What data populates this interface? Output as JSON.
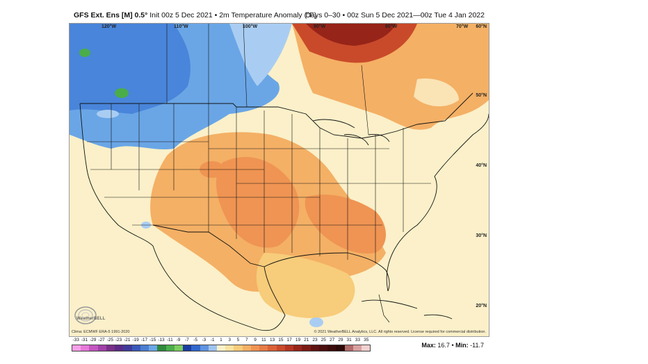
{
  "header": {
    "model": "GFS Ext. Ens [M] 0.5°",
    "init": "Init 00z 5 Dec 2021 • 2m Temperature Anomaly (°F)",
    "valid": "Days 0–30 • 00z Sun 5 Dec 2021—00z Tue 4 Jan 2022"
  },
  "map": {
    "lon_labels": [
      "120°W",
      "110°W",
      "100°W",
      "90°W",
      "80°W",
      "70°W"
    ],
    "lat_labels": [
      "60°N",
      "50°N",
      "40°N",
      "30°N",
      "20°N"
    ],
    "clim_note": "Clima: ECMWF ERA-5 1991-2020",
    "copyright": "© 2021 WeatherBELL Analytics, LLC. All rights reserved. License required for commercial distribution.",
    "logo_text": "WeatherBELL"
  },
  "legend": {
    "values": [
      "-33",
      "-31",
      "-29",
      "-27",
      "-25",
      "-23",
      "-21",
      "-19",
      "-17",
      "-15",
      "-13",
      "-11",
      "-9",
      "-7",
      "-5",
      "-3",
      "-1",
      "1",
      "3",
      "5",
      "7",
      "9",
      "11",
      "13",
      "15",
      "17",
      "19",
      "21",
      "23",
      "25",
      "27",
      "29",
      "31",
      "33",
      "35"
    ],
    "colors": [
      "#f5a0e8",
      "#e778d8",
      "#c455c0",
      "#a040a8",
      "#7a2e88",
      "#5b2a86",
      "#3f3a9a",
      "#3a58b8",
      "#4a7ed0",
      "#6aa6e6",
      "#2e8a3a",
      "#4aad4a",
      "#7ccc5e",
      "#1a3ca0",
      "#2f66cc",
      "#5f93e0",
      "#9ec3ef",
      "#fbf0c9",
      "#f9e3a0",
      "#f7cc7a",
      "#f4b065",
      "#ef9453",
      "#e67b45",
      "#da6137",
      "#c94a2a",
      "#b23521",
      "#962419",
      "#7b1a14",
      "#5e1310",
      "#4a0e0c",
      "#3a0a0a",
      "#2c0808",
      "#b06a6a",
      "#d9a0a0",
      "#f2d0d0"
    ]
  },
  "stats": {
    "max_label": "Max:",
    "max_value": "16.7",
    "min_label": "Min:",
    "min_value": "-11.7",
    "separator": "•"
  },
  "colors": {
    "cold_strong": "#3f79d6",
    "cold_mid": "#6aa6e6",
    "cold_light": "#a9cdf2",
    "near_zero": "#fbf0c9",
    "warm_light": "#f7cc7a",
    "warm_mid": "#f4b065",
    "warm_strong": "#ef9453",
    "hot": "#c94a2a",
    "hotter": "#962419",
    "green_pocket": "#4aad4a"
  }
}
